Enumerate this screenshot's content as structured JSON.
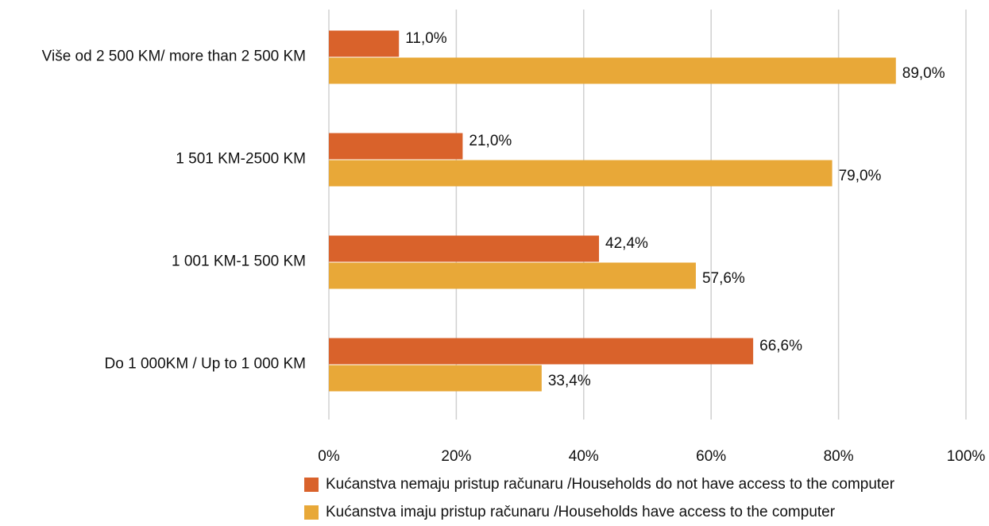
{
  "chart_data": {
    "type": "hbar",
    "categories": [
      "Više od 2 500 KM/ more than 2 500 KM",
      "1 501 KM-2500 KM",
      "1 001 KM-1 500 KM",
      "Do 1 000KM / Up to 1 000 KM"
    ],
    "series": [
      {
        "name": "Kućanstva nemaju pristup računaru /Households do not have access to the computer",
        "color": "#d9622b",
        "values": [
          11.0,
          21.0,
          42.4,
          66.6
        ],
        "value_labels": [
          "11,0%",
          "21,0%",
          "42,4%",
          "66,6%"
        ]
      },
      {
        "name": "Kućanstva imaju pristup računaru /Households have access to the computer",
        "color": "#e8a838",
        "values": [
          89.0,
          79.0,
          57.6,
          33.4
        ],
        "value_labels": [
          "89,0%",
          "79,0%",
          "57,6%",
          "33,4%"
        ]
      }
    ],
    "xlim": [
      0,
      100
    ],
    "xticks": [
      {
        "value": 0,
        "label": "0%"
      },
      {
        "value": 20,
        "label": "20%"
      },
      {
        "value": 40,
        "label": "40%"
      },
      {
        "value": 60,
        "label": "60%"
      },
      {
        "value": 80,
        "label": "80%"
      },
      {
        "value": 100,
        "label": "100%"
      }
    ],
    "grid": true
  }
}
